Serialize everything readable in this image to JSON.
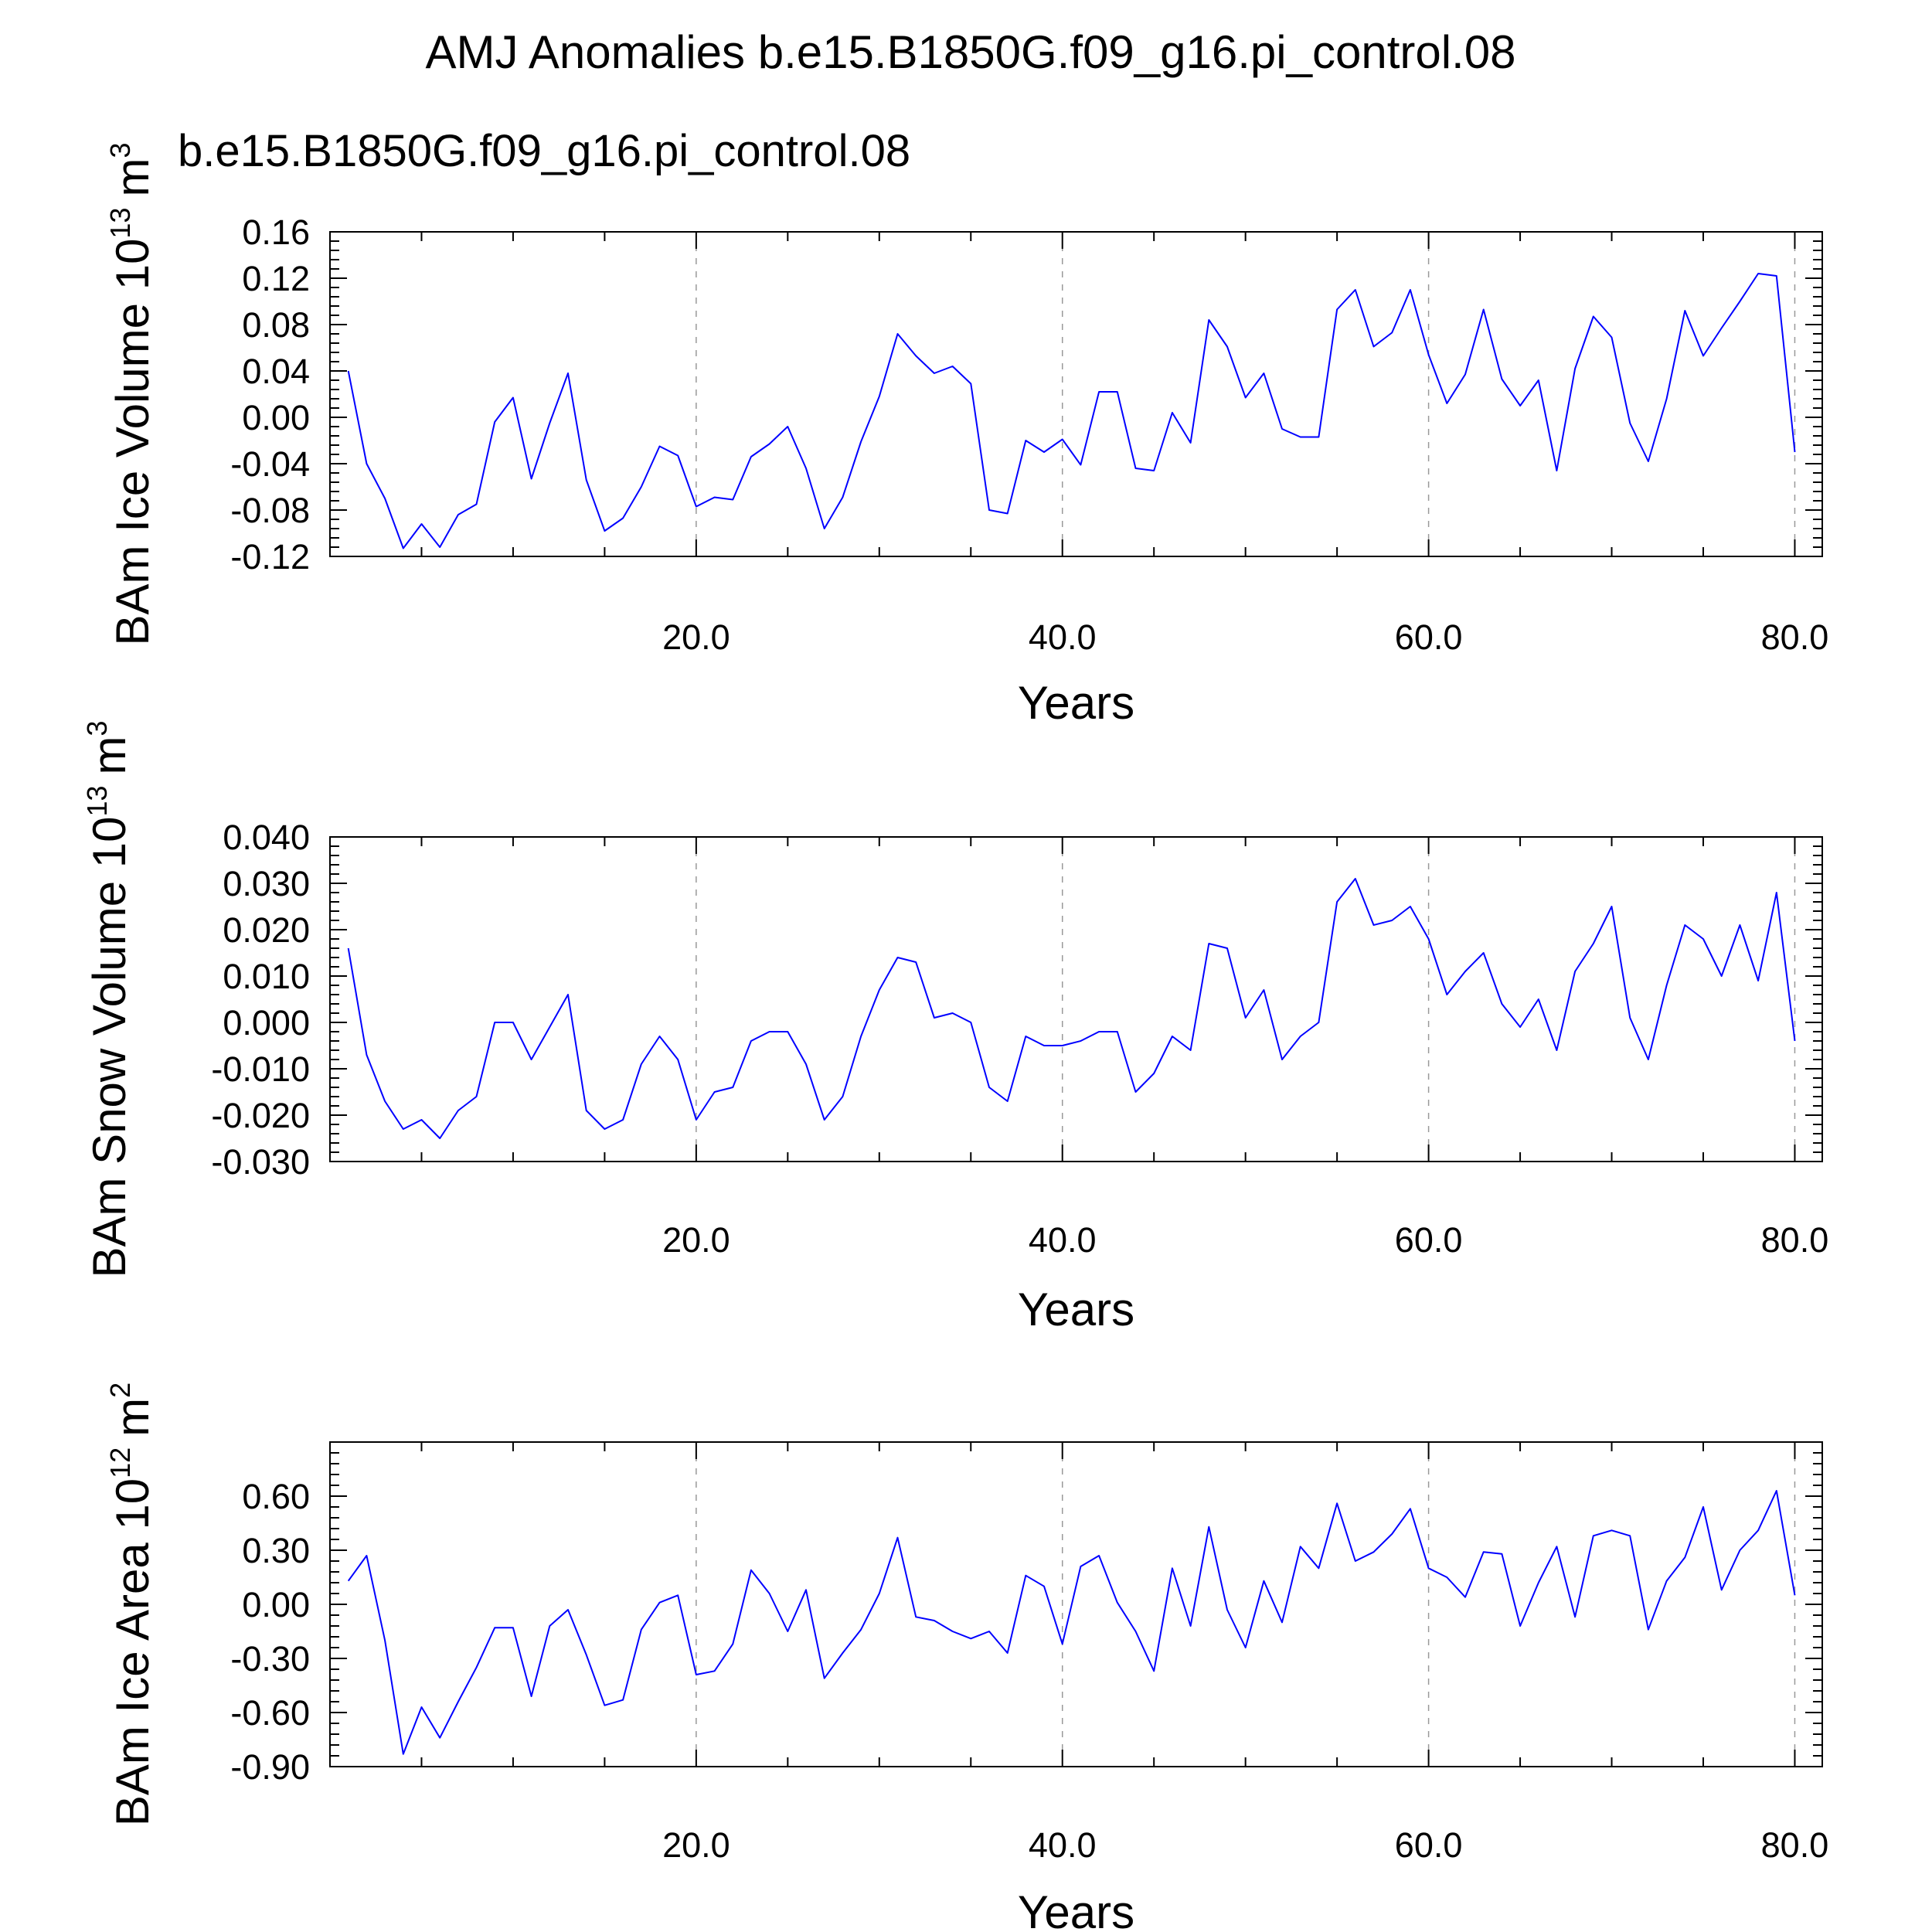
{
  "title": "AMJ Anomalies b.e15.B1850G.f09_g16.pi_control.08",
  "series_label": "b.e15.B1850G.f09_g16.pi_control.08",
  "colors": {
    "line": "#0000ff",
    "label": "#0000ff",
    "axis": "#000000",
    "grid": "#999999"
  },
  "chart_data": [
    {
      "type": "line",
      "ylabel": {
        "text": "BAm Ice Volume 10",
        "exponent": "13",
        "unit": "m",
        "unit_exponent": "3"
      },
      "xlabel": "Years",
      "xlim": [
        0,
        81.5
      ],
      "ylim": [
        -0.12,
        0.16
      ],
      "yticks": [
        "-0.12",
        "-0.08",
        "-0.04",
        "0.00",
        "0.04",
        "0.08",
        "0.12",
        "0.16"
      ],
      "yticks_values": [
        -0.12,
        -0.08,
        -0.04,
        0.0,
        0.04,
        0.08,
        0.12,
        0.16
      ],
      "xticks": [
        "20.0",
        "40.0",
        "60.0",
        "80.0"
      ],
      "xticks_values": [
        20,
        40,
        60,
        80
      ],
      "grid": "vertical dashed at major x ticks",
      "series": [
        {
          "x_start": 1,
          "values": [
            0.04,
            -0.04,
            -0.07,
            -0.113,
            -0.092,
            -0.112,
            -0.084,
            -0.075,
            -0.004,
            0.017,
            -0.053,
            -0.005,
            0.038,
            -0.054,
            -0.098,
            -0.087,
            -0.06,
            -0.025,
            -0.033,
            -0.077,
            -0.069,
            -0.071,
            -0.034,
            -0.023,
            -0.008,
            -0.044,
            -0.096,
            -0.069,
            -0.021,
            0.018,
            0.072,
            0.053,
            0.038,
            0.044,
            0.029,
            -0.08,
            -0.083,
            -0.02,
            -0.03,
            -0.019,
            -0.041,
            0.022,
            0.022,
            -0.044,
            -0.046,
            0.004,
            -0.022,
            0.084,
            0.061,
            0.017,
            0.038,
            -0.01,
            -0.017,
            -0.017,
            0.093,
            0.11,
            0.061,
            0.073,
            0.11,
            0.054,
            0.012,
            0.037,
            0.093,
            0.033,
            0.01,
            0.032,
            -0.046,
            0.042,
            0.087,
            0.069,
            -0.005,
            -0.038,
            0.016,
            0.092,
            0.053,
            0.077,
            0.1,
            0.124,
            0.122,
            -0.03
          ]
        }
      ]
    },
    {
      "type": "line",
      "ylabel": {
        "text": "BAm Snow Volume 10",
        "exponent": "13",
        "unit": "m",
        "unit_exponent": "3"
      },
      "xlabel": "Years",
      "xlim": [
        0,
        81.5
      ],
      "ylim": [
        -0.03,
        0.04
      ],
      "yticks": [
        "-0.030",
        "-0.020",
        "-0.010",
        "0.000",
        "0.010",
        "0.020",
        "0.030",
        "0.040"
      ],
      "yticks_values": [
        -0.03,
        -0.02,
        -0.01,
        0.0,
        0.01,
        0.02,
        0.03,
        0.04
      ],
      "xticks": [
        "20.0",
        "40.0",
        "60.0",
        "80.0"
      ],
      "xticks_values": [
        20,
        40,
        60,
        80
      ],
      "grid": "vertical dashed at major x ticks",
      "series": [
        {
          "x_start": 1,
          "values": [
            0.016,
            -0.007,
            -0.017,
            -0.023,
            -0.021,
            -0.025,
            -0.019,
            -0.016,
            0.0,
            0.0,
            -0.008,
            -0.001,
            0.006,
            -0.019,
            -0.023,
            -0.021,
            -0.009,
            -0.003,
            -0.008,
            -0.021,
            -0.015,
            -0.014,
            -0.004,
            -0.002,
            -0.002,
            -0.009,
            -0.021,
            -0.016,
            -0.003,
            0.007,
            0.014,
            0.013,
            0.001,
            0.002,
            0.0,
            -0.014,
            -0.017,
            -0.003,
            -0.005,
            -0.005,
            -0.004,
            -0.002,
            -0.002,
            -0.015,
            -0.011,
            -0.003,
            -0.006,
            0.017,
            0.016,
            0.001,
            0.007,
            -0.008,
            -0.003,
            0.0,
            0.026,
            0.031,
            0.021,
            0.022,
            0.025,
            0.018,
            0.006,
            0.011,
            0.015,
            0.004,
            -0.001,
            0.005,
            -0.006,
            0.011,
            0.017,
            0.025,
            0.001,
            -0.008,
            0.008,
            0.021,
            0.018,
            0.01,
            0.021,
            0.009,
            0.028,
            -0.004
          ]
        }
      ]
    },
    {
      "type": "line",
      "ylabel": {
        "text": "BAm Ice Area 10",
        "exponent": "12",
        "unit": "m",
        "unit_exponent": "2"
      },
      "xlabel": "Years",
      "xlim": [
        0,
        81.5
      ],
      "ylim": [
        -0.9,
        0.9
      ],
      "yticks": [
        "-0.90",
        "-0.60",
        "-0.30",
        "0.00",
        "0.30",
        "0.60"
      ],
      "yticks_values": [
        -0.9,
        -0.6,
        -0.3,
        0.0,
        0.3,
        0.6
      ],
      "xticks": [
        "20.0",
        "40.0",
        "60.0",
        "80.0"
      ],
      "xticks_values": [
        20,
        40,
        60,
        80
      ],
      "grid": "vertical dashed at major x ticks",
      "series": [
        {
          "x_start": 1,
          "values": [
            0.13,
            0.27,
            -0.2,
            -0.83,
            -0.57,
            -0.74,
            -0.54,
            -0.35,
            -0.13,
            -0.13,
            -0.51,
            -0.12,
            -0.03,
            -0.28,
            -0.56,
            -0.53,
            -0.14,
            0.01,
            0.05,
            -0.39,
            -0.37,
            -0.22,
            0.19,
            0.06,
            -0.15,
            0.08,
            -0.41,
            -0.27,
            -0.14,
            0.06,
            0.37,
            -0.07,
            -0.09,
            -0.15,
            -0.19,
            -0.15,
            -0.27,
            0.16,
            0.1,
            -0.22,
            0.21,
            0.27,
            0.01,
            -0.15,
            -0.37,
            0.2,
            -0.12,
            0.43,
            -0.03,
            -0.24,
            0.13,
            -0.1,
            0.32,
            0.2,
            0.56,
            0.24,
            0.29,
            0.39,
            0.53,
            0.2,
            0.15,
            0.04,
            0.29,
            0.28,
            -0.12,
            0.12,
            0.32,
            -0.07,
            0.38,
            0.41,
            0.38,
            -0.14,
            0.13,
            0.26,
            0.54,
            0.08,
            0.3,
            0.41,
            0.63,
            0.05
          ]
        }
      ]
    }
  ]
}
